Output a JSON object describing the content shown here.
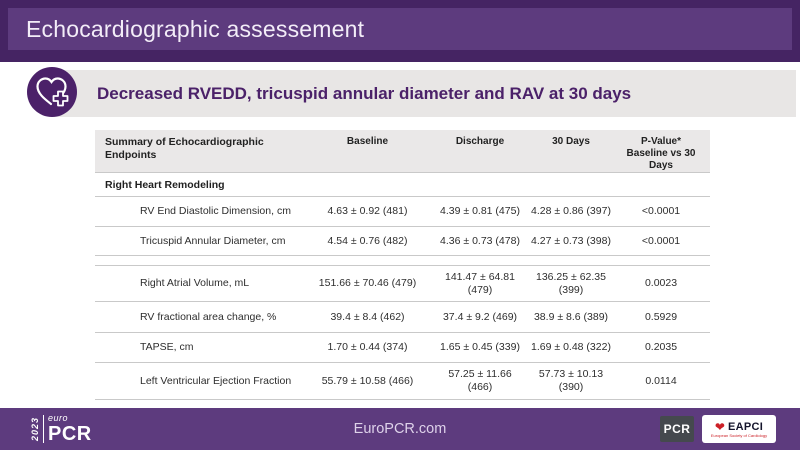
{
  "header": {
    "title": "Echocardiographic assessement"
  },
  "banner": {
    "text": "Decreased RVEDD, tricuspid annular diameter and RAV at 30 days",
    "icon": "heart-plus-icon"
  },
  "table": {
    "header": [
      "Summary of Echocardiographic Endpoints",
      "Baseline",
      "Discharge",
      "30 Days",
      "P-Value*\nBaseline vs 30\nDays"
    ],
    "section": "Right Heart Remodeling",
    "rows": [
      {
        "cells": [
          "RV End Diastolic Dimension, cm",
          "4.63 ± 0.92 (481)",
          "4.39 ± 0.81 (475)",
          "4.28 ± 0.86 (397)",
          "<0.0001"
        ]
      },
      {
        "cells": [
          "Tricuspid Annular Diameter, cm",
          "4.54 ± 0.76 (482)",
          "4.36 ± 0.73 (478)",
          "4.27 ± 0.73 (398)",
          "<0.0001"
        ]
      },
      {
        "spacer": true
      },
      {
        "cells": [
          "Right Atrial Volume, mL",
          "151.66 ± 70.46 (479)",
          "141.47 ± 64.81\n(479)",
          "136.25 ± 62.35\n(399)",
          "0.0023"
        ]
      },
      {
        "cells": [
          "RV fractional area change, %",
          "39.4 ± 8.4 (462)",
          "37.4 ± 9.2 (469)",
          "38.9 ± 8.6 (389)",
          "0.5929"
        ]
      },
      {
        "cells": [
          "TAPSE, cm",
          "1.70 ± 0.44 (374)",
          "1.65 ± 0.45 (339)",
          "1.69 ± 0.48 (322)",
          "0.2035"
        ]
      },
      {
        "cells": [
          "Left Ventricular Ejection Fraction",
          "55.79 ± 10.58 (466)",
          "57.25 ± 11.66\n(466)",
          "57.73 ± 10.13\n(390)",
          "0.0114"
        ]
      }
    ]
  },
  "footer": {
    "logo": {
      "year": "2023",
      "euro": "euro",
      "pcr": "PCR"
    },
    "website": "EuroPCR.com",
    "badges": {
      "pcr": "PCR",
      "eapci": "EAPCI",
      "eapci_tagline": "European Society of Cardiology"
    }
  },
  "colors": {
    "header_outer": "#452463",
    "header_inner": "#5d3b7e",
    "accent_purple": "#4b2169",
    "banner_bg": "#e8e6e5",
    "footer_bg": "#5d3b7e",
    "table_header_bg": "#eae8e8",
    "row_border": "#c9c9c9",
    "eapci_red": "#cc2027",
    "pcr_badge_bg": "#45494e"
  }
}
